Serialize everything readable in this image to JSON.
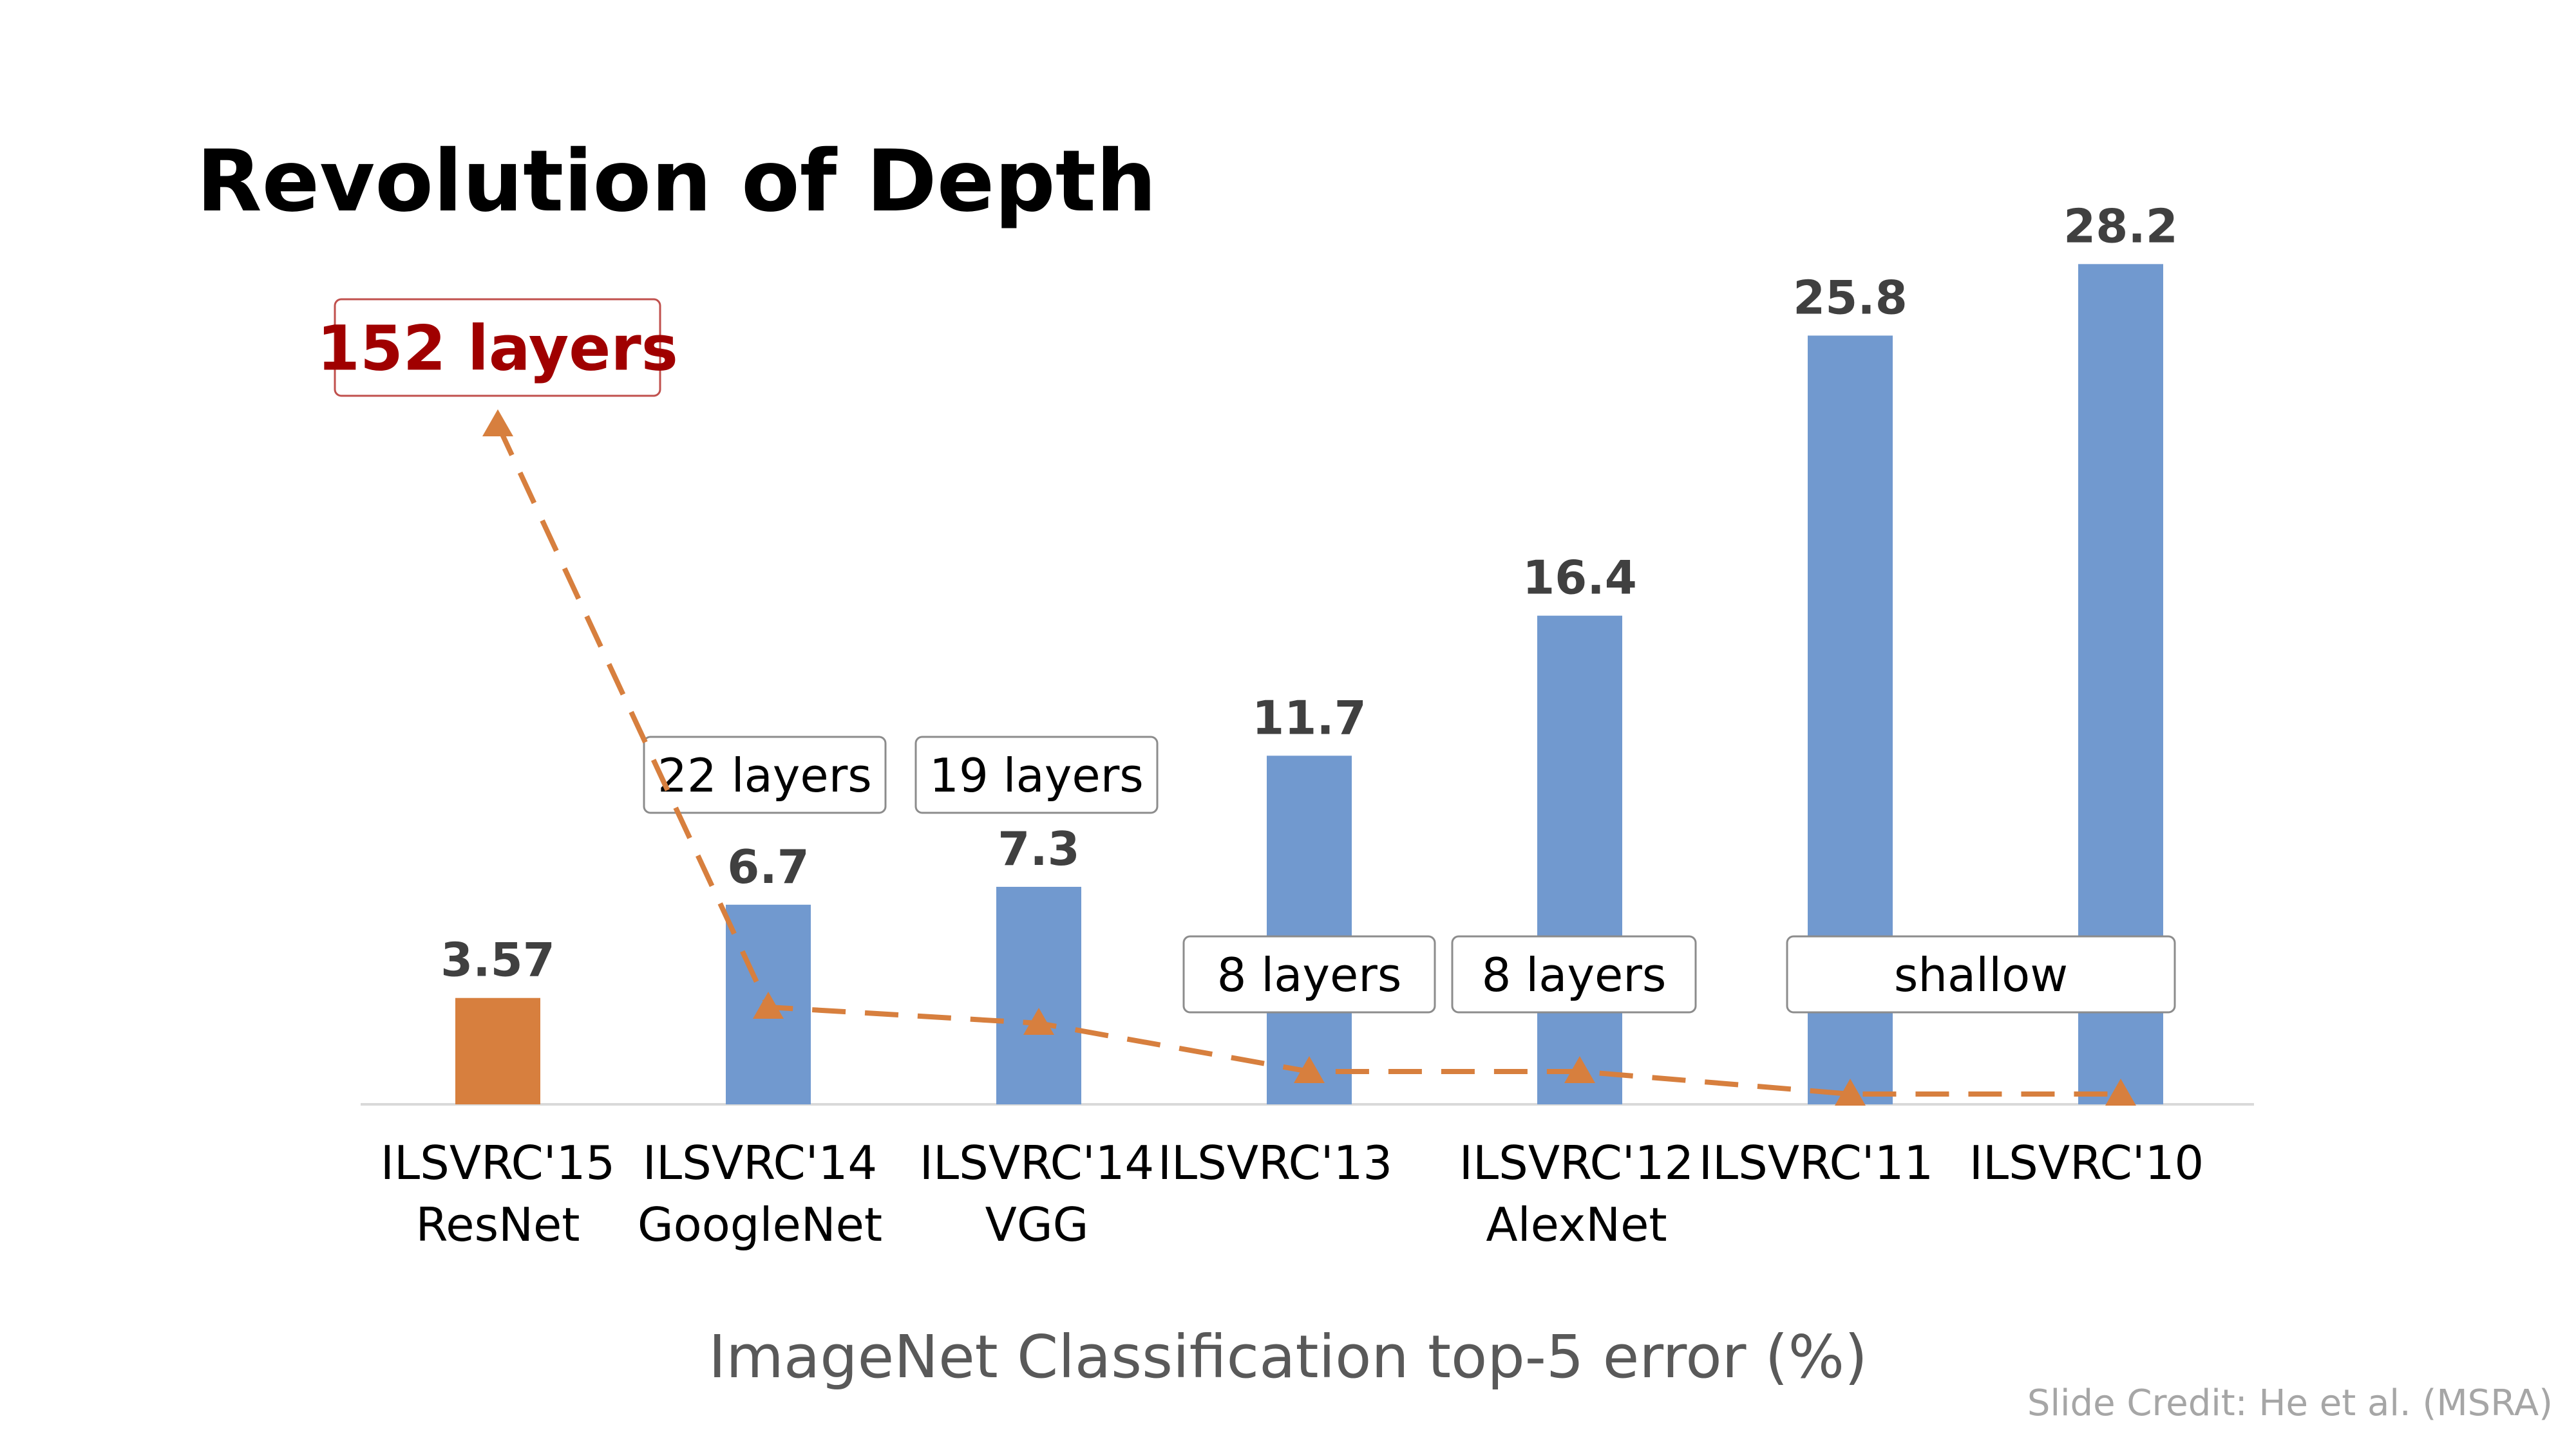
{
  "slide": {
    "title": "Revolution of Depth",
    "caption": "ImageNet Classification top-5 error (%)",
    "credit": "Slide Credit: He et al. (MSRA)"
  },
  "colors": {
    "highlight_bar": "#D77F3E",
    "bar": "#7199CF",
    "depth_line": "#D77F3E",
    "highlight_label": "#A00000",
    "value_label": "#404040"
  },
  "chart_data": {
    "type": "bar",
    "categories": [
      [
        "ILSVRC'15",
        "ResNet"
      ],
      [
        "ILSVRC'14",
        "GoogleNet"
      ],
      [
        "ILSVRC'14",
        "VGG"
      ],
      [
        "ILSVRC'13"
      ],
      [
        "ILSVRC'12",
        "AlexNet"
      ],
      [
        "ILSVRC'11"
      ],
      [
        "ILSVRC'10"
      ]
    ],
    "values": [
      3.57,
      6.7,
      7.3,
      11.7,
      16.4,
      25.8,
      28.2
    ],
    "value_labels": [
      "3.57",
      "6.7",
      "7.3",
      "11.7",
      "16.4",
      "25.8",
      "28.2"
    ],
    "highlight_index": 0,
    "depth_labels": [
      "152 layers",
      "22 layers",
      "19 layers",
      "8 layers",
      "8 layers",
      "shallow"
    ],
    "depth_label_categories": [
      [
        0
      ],
      [
        1
      ],
      [
        2
      ],
      [
        3
      ],
      [
        4
      ],
      [
        5,
        6
      ]
    ],
    "depth_series": {
      "line_style": "dashed",
      "marker": "triangle"
    }
  }
}
